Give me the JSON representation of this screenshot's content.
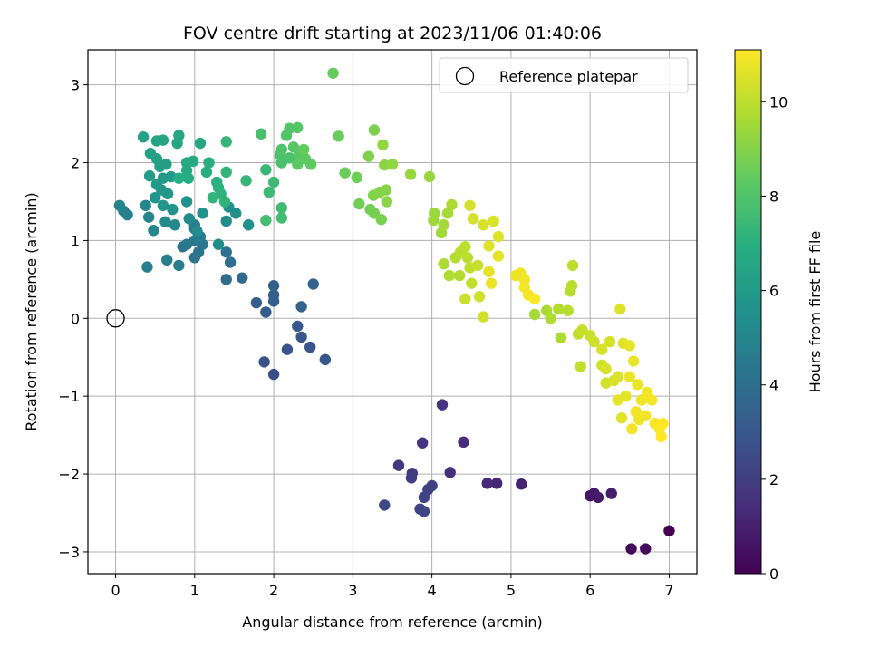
{
  "chart_data": {
    "type": "scatter",
    "title": "FOV centre drift starting at 2023/11/06 01:40:06",
    "xlabel": "Angular distance from reference (arcmin)",
    "ylabel": "Rotation from reference (arcmin)",
    "xlim": [
      -0.35,
      7.35
    ],
    "ylim": [
      -3.28,
      3.45
    ],
    "xticks": [
      0,
      1,
      2,
      3,
      4,
      5,
      6,
      7
    ],
    "yticks": [
      -3,
      -2,
      -1,
      0,
      1,
      2,
      3
    ],
    "grid": true,
    "legend": {
      "placement": "top-right",
      "entries": [
        {
          "label": "Reference platepar",
          "marker": "open-circle"
        }
      ]
    },
    "reference": {
      "x": 0,
      "y": 0
    },
    "colorbar": {
      "label": "Hours from first FF file",
      "colormap": "viridis",
      "range": [
        0,
        11.1
      ],
      "ticks": [
        0,
        2,
        4,
        6,
        8,
        10
      ]
    },
    "points": [
      [
        7.0,
        -2.73,
        0.0
      ],
      [
        6.52,
        -2.96,
        0.2
      ],
      [
        6.7,
        -2.96,
        0.3
      ],
      [
        6.0,
        -2.28,
        0.6
      ],
      [
        6.05,
        -2.25,
        0.7
      ],
      [
        6.1,
        -2.3,
        0.8
      ],
      [
        6.27,
        -2.25,
        0.9
      ],
      [
        5.13,
        -2.13,
        1.1
      ],
      [
        4.82,
        -2.12,
        1.2
      ],
      [
        4.7,
        -2.12,
        1.3
      ],
      [
        4.4,
        -1.59,
        1.4
      ],
      [
        4.23,
        -1.98,
        1.5
      ],
      [
        4.13,
        -1.11,
        1.6
      ],
      [
        3.88,
        -1.6,
        1.7
      ],
      [
        3.58,
        -1.89,
        1.8
      ],
      [
        3.75,
        -1.99,
        1.9
      ],
      [
        3.74,
        -2.05,
        2.0
      ],
      [
        4.0,
        -2.15,
        2.1
      ],
      [
        3.95,
        -2.2,
        2.15
      ],
      [
        3.9,
        -2.3,
        2.2
      ],
      [
        3.85,
        -2.45,
        2.25
      ],
      [
        3.9,
        -2.48,
        2.3
      ],
      [
        3.4,
        -2.4,
        2.35
      ],
      [
        2.0,
        -0.72,
        2.6
      ],
      [
        1.88,
        -0.56,
        2.7
      ],
      [
        2.17,
        -0.4,
        2.8
      ],
      [
        2.46,
        -0.37,
        2.9
      ],
      [
        2.35,
        -0.24,
        3.0
      ],
      [
        2.65,
        -0.53,
        3.05
      ],
      [
        2.3,
        -0.1,
        3.1
      ],
      [
        1.9,
        0.08,
        3.2
      ],
      [
        1.78,
        0.2,
        3.25
      ],
      [
        2.0,
        0.22,
        3.3
      ],
      [
        2.0,
        0.3,
        3.35
      ],
      [
        2.0,
        0.42,
        3.4
      ],
      [
        2.35,
        0.15,
        3.45
      ],
      [
        2.5,
        0.44,
        3.5
      ],
      [
        1.6,
        0.52,
        3.8
      ],
      [
        1.4,
        0.5,
        3.9
      ],
      [
        1.45,
        0.72,
        4.0
      ],
      [
        1.4,
        0.85,
        4.1
      ],
      [
        1.0,
        0.78,
        4.2
      ],
      [
        1.05,
        0.85,
        4.25
      ],
      [
        0.85,
        0.92,
        4.3
      ],
      [
        1.1,
        0.95,
        4.35
      ],
      [
        0.9,
        0.95,
        4.4
      ],
      [
        1.0,
        1.0,
        4.45
      ],
      [
        1.07,
        1.05,
        4.5
      ],
      [
        1.0,
        1.15,
        4.55
      ],
      [
        1.0,
        1.2,
        4.6
      ],
      [
        0.8,
        0.68,
        4.65
      ],
      [
        0.65,
        0.75,
        4.7
      ],
      [
        0.4,
        0.66,
        4.75
      ],
      [
        0.15,
        1.33,
        4.8
      ],
      [
        0.1,
        1.38,
        4.85
      ],
      [
        0.05,
        1.45,
        4.9
      ],
      [
        0.38,
        1.45,
        5.0
      ],
      [
        0.42,
        1.3,
        5.05
      ],
      [
        0.48,
        1.13,
        5.1
      ],
      [
        0.63,
        1.24,
        5.15
      ],
      [
        0.75,
        1.2,
        5.2
      ],
      [
        0.93,
        1.28,
        5.25
      ],
      [
        1.03,
        1.12,
        5.3
      ],
      [
        1.3,
        0.95,
        5.35
      ],
      [
        1.4,
        1.25,
        5.4
      ],
      [
        1.52,
        1.35,
        5.45
      ],
      [
        1.43,
        1.43,
        5.5
      ],
      [
        1.68,
        1.2,
        5.55
      ],
      [
        1.1,
        1.35,
        5.6
      ],
      [
        0.9,
        1.5,
        5.65
      ],
      [
        0.72,
        1.4,
        5.7
      ],
      [
        0.6,
        1.45,
        5.75
      ],
      [
        0.5,
        1.55,
        5.8
      ],
      [
        0.58,
        1.65,
        5.85
      ],
      [
        0.66,
        1.6,
        5.9
      ],
      [
        0.52,
        1.72,
        5.95
      ],
      [
        0.6,
        1.8,
        6.0
      ],
      [
        0.7,
        1.82,
        6.05
      ],
      [
        0.43,
        1.83,
        6.1
      ],
      [
        0.56,
        1.95,
        6.15
      ],
      [
        0.64,
        1.98,
        6.2
      ],
      [
        0.52,
        2.05,
        6.25
      ],
      [
        0.44,
        2.12,
        6.3
      ],
      [
        0.35,
        2.33,
        6.35
      ],
      [
        0.52,
        2.28,
        6.4
      ],
      [
        0.6,
        2.29,
        6.45
      ],
      [
        0.78,
        2.25,
        6.5
      ],
      [
        0.8,
        2.35,
        6.55
      ],
      [
        1.07,
        2.25,
        6.6
      ],
      [
        0.9,
        2.0,
        6.65
      ],
      [
        0.98,
        2.02,
        6.7
      ],
      [
        0.9,
        1.9,
        6.75
      ],
      [
        0.92,
        1.8,
        6.8
      ],
      [
        0.8,
        1.8,
        6.85
      ],
      [
        1.18,
        2.0,
        6.9
      ],
      [
        1.15,
        1.88,
        6.95
      ],
      [
        1.28,
        1.75,
        7.0
      ],
      [
        1.3,
        1.68,
        7.05
      ],
      [
        1.33,
        1.6,
        7.1
      ],
      [
        1.38,
        1.5,
        7.15
      ],
      [
        1.23,
        1.55,
        7.2
      ],
      [
        1.4,
        1.88,
        7.25
      ],
      [
        1.4,
        2.27,
        7.3
      ],
      [
        1.65,
        1.77,
        7.35
      ],
      [
        1.9,
        1.91,
        7.4
      ],
      [
        1.94,
        1.62,
        7.5
      ],
      [
        2.0,
        1.75,
        7.55
      ],
      [
        2.1,
        1.42,
        7.6
      ],
      [
        2.1,
        1.29,
        7.65
      ],
      [
        1.9,
        1.26,
        7.7
      ],
      [
        1.84,
        2.37,
        7.75
      ],
      [
        2.1,
        2.0,
        7.8
      ],
      [
        2.08,
        2.1,
        7.85
      ],
      [
        2.2,
        2.06,
        7.9
      ],
      [
        2.1,
        2.17,
        7.95
      ],
      [
        2.16,
        2.35,
        8.0
      ],
      [
        2.2,
        2.44,
        8.05
      ],
      [
        2.3,
        2.45,
        8.1
      ],
      [
        2.25,
        2.2,
        8.15
      ],
      [
        2.32,
        2.1,
        8.2
      ],
      [
        2.3,
        1.98,
        8.25
      ],
      [
        2.47,
        1.98,
        8.3
      ],
      [
        2.4,
        2.05,
        8.35
      ],
      [
        2.38,
        2.17,
        8.4
      ],
      [
        2.75,
        3.15,
        8.45
      ],
      [
        2.82,
        2.34,
        8.5
      ],
      [
        2.9,
        1.87,
        8.55
      ],
      [
        3.05,
        1.81,
        8.6
      ],
      [
        3.08,
        1.47,
        8.65
      ],
      [
        3.22,
        1.4,
        8.7
      ],
      [
        3.27,
        1.35,
        8.75
      ],
      [
        3.36,
        1.27,
        8.8
      ],
      [
        3.27,
        2.42,
        8.85
      ],
      [
        3.2,
        2.08,
        8.9
      ],
      [
        3.26,
        1.58,
        8.95
      ],
      [
        3.34,
        1.62,
        9.0
      ],
      [
        3.42,
        1.65,
        9.05
      ],
      [
        3.43,
        1.5,
        9.1
      ],
      [
        3.4,
        1.97,
        9.15
      ],
      [
        3.5,
        1.98,
        9.2
      ],
      [
        3.38,
        2.23,
        9.25
      ],
      [
        3.73,
        1.85,
        9.3
      ],
      [
        3.97,
        1.82,
        9.35
      ],
      [
        4.03,
        1.35,
        9.4
      ],
      [
        4.02,
        1.26,
        9.45
      ],
      [
        4.12,
        1.1,
        9.5
      ],
      [
        4.15,
        1.2,
        9.55
      ],
      [
        4.2,
        1.35,
        9.6
      ],
      [
        4.25,
        1.46,
        9.65
      ],
      [
        4.15,
        0.7,
        9.7
      ],
      [
        4.22,
        0.55,
        9.75
      ],
      [
        4.35,
        0.55,
        9.8
      ],
      [
        4.3,
        0.78,
        9.85
      ],
      [
        4.36,
        0.85,
        9.9
      ],
      [
        4.45,
        0.78,
        9.95
      ],
      [
        4.42,
        0.92,
        10.0
      ],
      [
        4.48,
        0.65,
        10.05
      ],
      [
        4.5,
        0.45,
        10.1
      ],
      [
        4.58,
        0.68,
        10.15
      ],
      [
        4.42,
        0.25,
        10.2
      ],
      [
        4.6,
        0.28,
        10.25
      ],
      [
        4.65,
        0.02,
        10.3
      ],
      [
        4.48,
        1.45,
        10.35
      ],
      [
        4.52,
        1.28,
        10.4
      ],
      [
        4.65,
        1.2,
        10.45
      ],
      [
        4.78,
        1.25,
        10.5
      ],
      [
        4.84,
        1.05,
        10.55
      ],
      [
        4.72,
        0.93,
        10.6
      ],
      [
        4.84,
        0.8,
        10.65
      ],
      [
        4.72,
        0.6,
        10.7
      ],
      [
        4.75,
        0.45,
        10.75
      ],
      [
        5.06,
        0.55,
        10.8
      ],
      [
        5.12,
        0.58,
        10.85
      ],
      [
        5.17,
        0.5,
        10.9
      ],
      [
        5.17,
        0.4,
        10.95
      ],
      [
        5.22,
        0.3,
        11.0
      ],
      [
        5.3,
        0.25,
        11.05
      ],
      [
        5.3,
        0.05,
        9.6
      ],
      [
        5.45,
        0.1,
        9.65
      ],
      [
        5.63,
        -0.25,
        9.7
      ],
      [
        5.5,
        0.0,
        9.75
      ],
      [
        5.6,
        0.12,
        9.8
      ],
      [
        5.72,
        0.1,
        9.85
      ],
      [
        5.75,
        0.35,
        9.9
      ],
      [
        5.77,
        0.42,
        9.95
      ],
      [
        5.78,
        0.68,
        10.0
      ],
      [
        5.85,
        -0.2,
        10.05
      ],
      [
        5.88,
        -0.62,
        10.1
      ],
      [
        5.9,
        -0.15,
        10.15
      ],
      [
        6.0,
        -0.22,
        10.2
      ],
      [
        6.05,
        -0.3,
        10.25
      ],
      [
        6.15,
        -0.6,
        10.3
      ],
      [
        6.2,
        -0.83,
        10.35
      ],
      [
        6.25,
        -0.3,
        10.4
      ],
      [
        6.3,
        -0.8,
        10.45
      ],
      [
        6.35,
        -0.75,
        10.5
      ],
      [
        6.38,
        0.12,
        10.55
      ],
      [
        6.42,
        -0.32,
        10.6
      ],
      [
        6.45,
        -1.0,
        10.65
      ],
      [
        6.5,
        -0.35,
        10.7
      ],
      [
        6.55,
        -0.55,
        10.75
      ],
      [
        6.6,
        -0.85,
        10.8
      ],
      [
        6.65,
        -1.05,
        10.85
      ],
      [
        6.7,
        -1.25,
        10.9
      ],
      [
        6.72,
        -0.95,
        10.95
      ],
      [
        6.78,
        -1.05,
        11.0
      ],
      [
        6.82,
        -1.35,
        11.02
      ],
      [
        6.88,
        -1.42,
        11.05
      ],
      [
        6.9,
        -1.52,
        11.07
      ],
      [
        6.92,
        -1.35,
        11.1
      ],
      [
        6.53,
        -1.42,
        10.9
      ],
      [
        6.58,
        -1.2,
        10.88
      ],
      [
        6.62,
        -1.3,
        10.85
      ],
      [
        6.4,
        -1.28,
        10.6
      ],
      [
        6.35,
        -1.05,
        10.7
      ],
      [
        6.5,
        -0.75,
        10.8
      ],
      [
        6.15,
        -0.4,
        10.4
      ],
      [
        6.2,
        -0.65,
        10.45
      ]
    ]
  }
}
